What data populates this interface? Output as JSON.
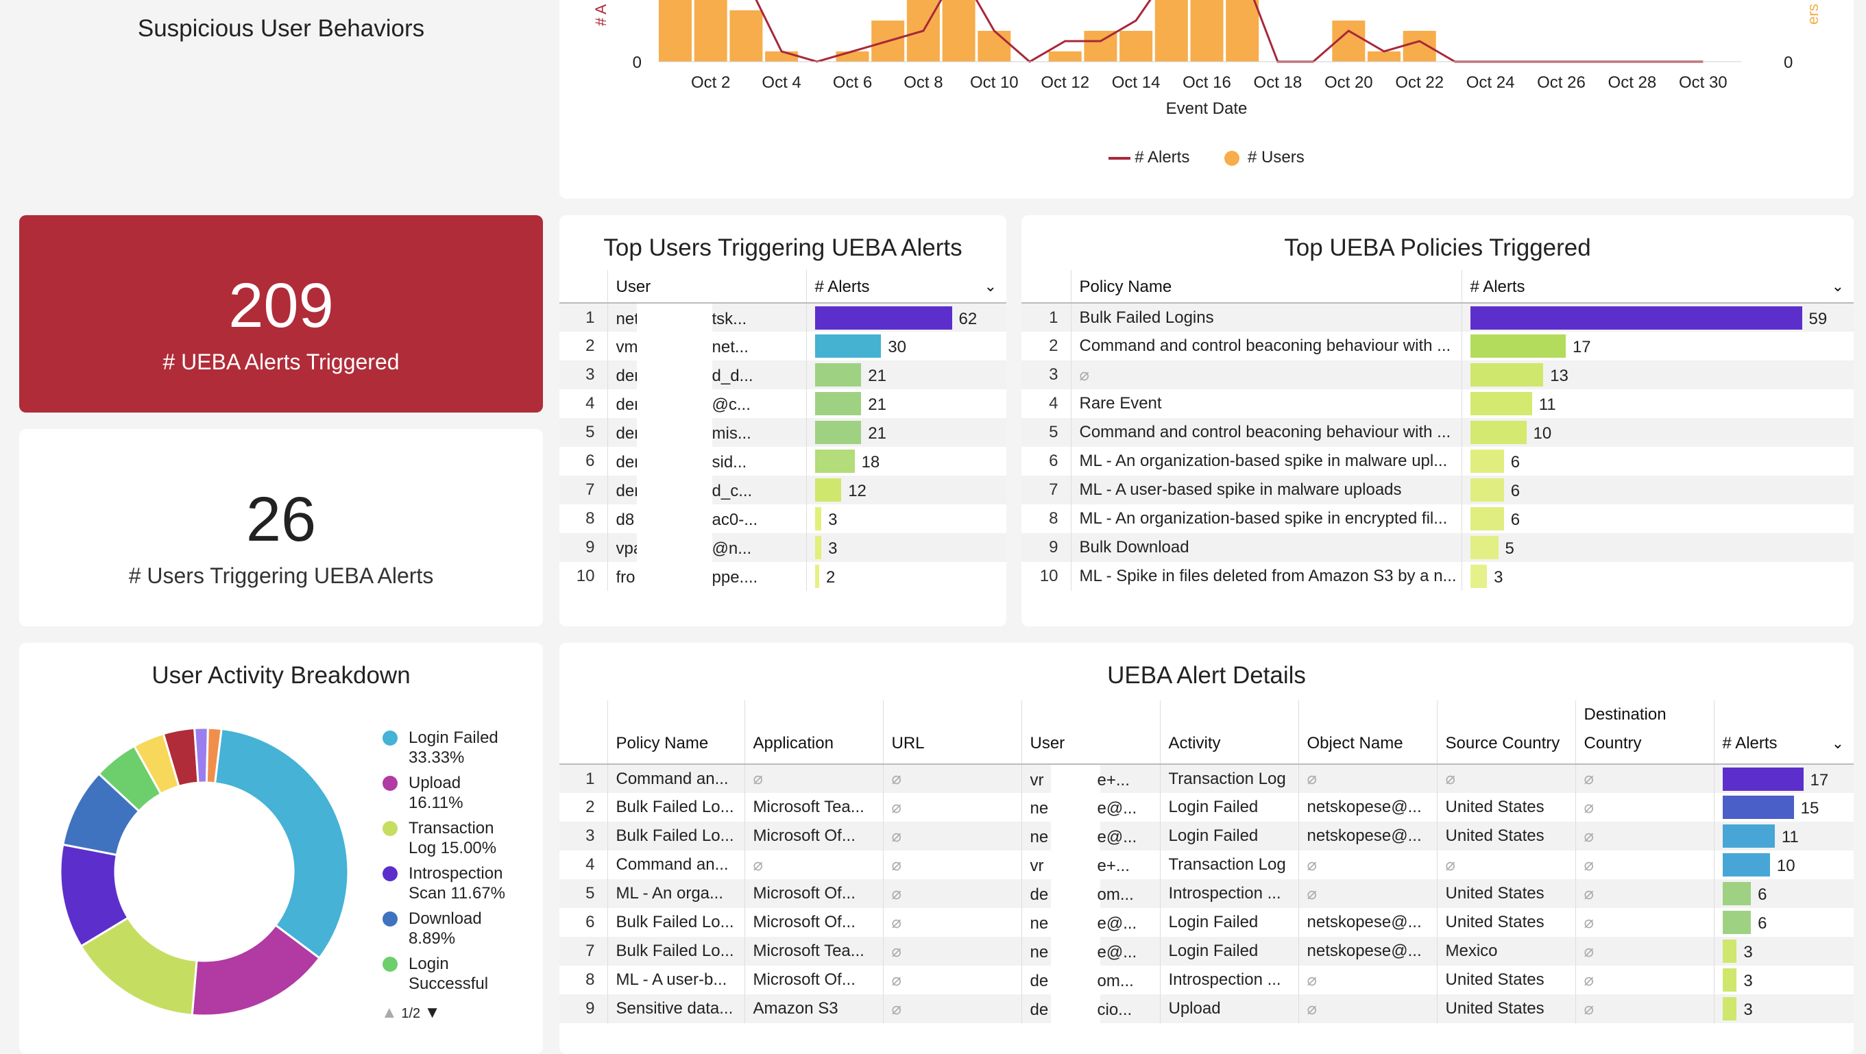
{
  "trend": {
    "title": "Suspicious User Behaviors",
    "xlabel": "Event Date",
    "ylabel_left": "# A",
    "ylabel_right": "ers",
    "zero_left": "0",
    "zero_right": "0",
    "xticks": [
      "Oct 2",
      "Oct 4",
      "Oct 6",
      "Oct 8",
      "Oct 10",
      "Oct 12",
      "Oct 14",
      "Oct 16",
      "Oct 18",
      "Oct 20",
      "Oct 22",
      "Oct 24",
      "Oct 26",
      "Oct 28",
      "Oct 30"
    ],
    "legend": [
      {
        "label": "# Alerts",
        "color": "#a8283a"
      },
      {
        "label": "# Users",
        "color": "#f7ad4b"
      }
    ]
  },
  "chart_data": {
    "type": "bar",
    "x": [
      "Oct 1",
      "Oct 2",
      "Oct 3",
      "Oct 4",
      "Oct 5",
      "Oct 6",
      "Oct 7",
      "Oct 8",
      "Oct 9",
      "Oct 10",
      "Oct 11",
      "Oct 12",
      "Oct 13",
      "Oct 14",
      "Oct 15",
      "Oct 16",
      "Oct 17",
      "Oct 18",
      "Oct 19",
      "Oct 20",
      "Oct 21",
      "Oct 22",
      "Oct 23",
      "Oct 24",
      "Oct 25",
      "Oct 26",
      "Oct 27",
      "Oct 28",
      "Oct 29",
      "Oct 30"
    ],
    "series": [
      {
        "name": "# Users",
        "type": "bar",
        "color": "#f7ad4b",
        "values": [
          6,
          6,
          5,
          1,
          0,
          1,
          4,
          6,
          6,
          3,
          0,
          1,
          3,
          3,
          6,
          6,
          6,
          0,
          0,
          4,
          1,
          3,
          0,
          0,
          0,
          0,
          0,
          0,
          0,
          0
        ]
      },
      {
        "name": "# Alerts",
        "type": "line",
        "color": "#a8283a",
        "values": [
          9,
          9,
          8,
          1,
          0,
          1,
          2,
          3,
          9,
          3,
          0,
          2,
          2,
          4,
          9,
          9,
          9,
          0,
          0,
          3,
          1,
          2,
          0,
          0,
          0,
          0,
          0,
          0,
          0,
          0
        ]
      }
    ],
    "xlabel": "Event Date",
    "ylim_visible": [
      0,
      6
    ]
  },
  "kpi1": {
    "value": "209",
    "label": "# UEBA Alerts Triggered",
    "color": "#b02c38"
  },
  "kpi2": {
    "value": "26",
    "label": "# Users Triggering UEBA Alerts"
  },
  "top_users": {
    "title": "Top Users Triggering UEBA Alerts",
    "col_user": "User",
    "col_alerts": "# Alerts",
    "rows": [
      {
        "n": "1",
        "a": "net",
        "b": "tsk...",
        "v": 62,
        "color": "#5c2fcc"
      },
      {
        "n": "2",
        "a": "vm",
        "b": "net...",
        "v": 30,
        "color": "#45b2d2"
      },
      {
        "n": "3",
        "a": "der",
        "b": "d_d...",
        "v": 21,
        "color": "#9fd183"
      },
      {
        "n": "4",
        "a": "der",
        "b": "@c...",
        "v": 21,
        "color": "#9fd183"
      },
      {
        "n": "5",
        "a": "der",
        "b": "mis...",
        "v": 21,
        "color": "#9fd183"
      },
      {
        "n": "6",
        "a": "der",
        "b": "sid...",
        "v": 18,
        "color": "#b3dc7a"
      },
      {
        "n": "7",
        "a": "der",
        "b": "d_c...",
        "v": 12,
        "color": "#cfe76c"
      },
      {
        "n": "8",
        "a": "d8",
        "b": "ac0-...",
        "v": 3,
        "color": "#e3ef7b"
      },
      {
        "n": "9",
        "a": "vpa",
        "b": "@n...",
        "v": 3,
        "color": "#e3ef7b"
      },
      {
        "n": "10",
        "a": "fro",
        "b": "ppe....",
        "v": 2,
        "color": "#e6f183"
      }
    ]
  },
  "top_policies": {
    "title": "Top UEBA Policies Triggered",
    "col_policy": "Policy Name",
    "col_alerts": "# Alerts",
    "rows": [
      {
        "n": "1",
        "p": "Bulk Failed Logins",
        "v": 59,
        "color": "#5c2fcc"
      },
      {
        "n": "2",
        "p": "Command and control beaconing behaviour with ...",
        "v": 17,
        "color": "#b3dc5c"
      },
      {
        "n": "3",
        "p": "⌀",
        "v": 13,
        "color": "#cfe76c"
      },
      {
        "n": "4",
        "p": "Rare Event",
        "v": 11,
        "color": "#d3e96f"
      },
      {
        "n": "5",
        "p": "Command and control beaconing behaviour with ...",
        "v": 10,
        "color": "#d3e96f"
      },
      {
        "n": "6",
        "p": "ML - An organization-based spike in malware upl...",
        "v": 6,
        "color": "#e0ee80"
      },
      {
        "n": "7",
        "p": "ML - A user-based spike in malware uploads",
        "v": 6,
        "color": "#e0ee80"
      },
      {
        "n": "8",
        "p": "ML - An organization-based spike in encrypted fil...",
        "v": 6,
        "color": "#e0ee80"
      },
      {
        "n": "9",
        "p": "Bulk Download",
        "v": 5,
        "color": "#e2ef84"
      },
      {
        "n": "10",
        "p": "ML - Spike in files deleted from Amazon S3 by a n...",
        "v": 3,
        "color": "#e6f18c"
      }
    ]
  },
  "breakdown": {
    "title": "User Activity Breakdown",
    "slices": [
      {
        "label": "Login Failed",
        "pct": 33.33,
        "color": "#45b2d6"
      },
      {
        "label": "Upload",
        "pct": 16.11,
        "color": "#b13aa3"
      },
      {
        "label": "Transaction Log",
        "pct": 15.0,
        "color": "#c5de62"
      },
      {
        "label": "Introspection Scan",
        "pct": 11.67,
        "color": "#5c2fcc"
      },
      {
        "label": "Download",
        "pct": 8.89,
        "color": "#3f73bf"
      },
      {
        "label": "Login Successful",
        "pct": 5.0,
        "color": "#6ccf6c"
      },
      {
        "label": "",
        "pct": 3.5,
        "color": "#f7d85a"
      },
      {
        "label": "",
        "pct": 3.5,
        "color": "#b02c38"
      },
      {
        "label": "",
        "pct": 1.5,
        "color": "#9a7ef0"
      },
      {
        "label": "",
        "pct": 1.5,
        "color": "#f08f4c"
      }
    ],
    "legend": [
      {
        "l1": "Login Failed",
        "l2": "33.33%",
        "color": "#45b2d6"
      },
      {
        "l1": "Upload",
        "l2": "16.11%",
        "color": "#b13aa3"
      },
      {
        "l1": "Transaction",
        "l2": "Log 15.00%",
        "color": "#c5de62"
      },
      {
        "l1": "Introspection",
        "l2": "Scan 11.67%",
        "color": "#5c2fcc"
      },
      {
        "l1": "Download",
        "l2": "8.89%",
        "color": "#3f73bf"
      },
      {
        "l1": "Login",
        "l2": "Successful",
        "color": "#6ccf6c"
      }
    ],
    "pager": "1/2"
  },
  "details": {
    "title": "UEBA Alert Details",
    "cols": [
      "Policy Name",
      "Application",
      "URL",
      "User",
      "Activity",
      "Object Name",
      "Source Country",
      "Destination Country",
      "# Alerts"
    ],
    "null": "⌀",
    "rows": [
      {
        "n": "1",
        "policy": "Command an...",
        "app": "⌀",
        "url": "⌀",
        "ua": "vr",
        "ub": "e+...",
        "act": "Transaction Log",
        "obj": "⌀",
        "src": "⌀",
        "dst": "⌀",
        "v": 17,
        "color": "#5c2fcc"
      },
      {
        "n": "2",
        "policy": "Bulk Failed Lo...",
        "app": "Microsoft Tea...",
        "url": "⌀",
        "ua": "ne",
        "ub": "e@...",
        "act": "Login Failed",
        "obj": "netskopese@...",
        "src": "United States",
        "dst": "⌀",
        "v": 15,
        "color": "#4a5fc8"
      },
      {
        "n": "3",
        "policy": "Bulk Failed Lo...",
        "app": "Microsoft Of...",
        "url": "⌀",
        "ua": "ne",
        "ub": "e@...",
        "act": "Login Failed",
        "obj": "netskopese@...",
        "src": "United States",
        "dst": "⌀",
        "v": 11,
        "color": "#48a6d6"
      },
      {
        "n": "4",
        "policy": "Command an...",
        "app": "⌀",
        "url": "⌀",
        "ua": "vr",
        "ub": "e+...",
        "act": "Transaction Log",
        "obj": "⌀",
        "src": "⌀",
        "dst": "⌀",
        "v": 10,
        "color": "#48a6d6"
      },
      {
        "n": "5",
        "policy": "ML - An orga...",
        "app": "Microsoft Of...",
        "url": "⌀",
        "ua": "de",
        "ub": "om...",
        "act": "Introspection ...",
        "obj": "⌀",
        "src": "United States",
        "dst": "⌀",
        "v": 6,
        "color": "#9fd183"
      },
      {
        "n": "6",
        "policy": "Bulk Failed Lo...",
        "app": "Microsoft Of...",
        "url": "⌀",
        "ua": "ne",
        "ub": "e@...",
        "act": "Login Failed",
        "obj": "netskopese@...",
        "src": "United States",
        "dst": "⌀",
        "v": 6,
        "color": "#9fd183"
      },
      {
        "n": "7",
        "policy": "Bulk Failed Lo...",
        "app": "Microsoft Tea...",
        "url": "⌀",
        "ua": "ne",
        "ub": "e@...",
        "act": "Login Failed",
        "obj": "netskopese@...",
        "src": "Mexico",
        "dst": "⌀",
        "v": 3,
        "color": "#cfe76c"
      },
      {
        "n": "8",
        "policy": "ML - A user-b...",
        "app": "Microsoft Of...",
        "url": "⌀",
        "ua": "de",
        "ub": "om...",
        "act": "Introspection ...",
        "obj": "⌀",
        "src": "United States",
        "dst": "⌀",
        "v": 3,
        "color": "#cfe76c"
      },
      {
        "n": "9",
        "policy": "Sensitive data...",
        "app": "Amazon S3",
        "url": "⌀",
        "ua": "de",
        "ub": "cio...",
        "act": "Upload",
        "obj": "⌀",
        "src": "United States",
        "dst": "⌀",
        "v": 3,
        "color": "#cfe76c"
      }
    ]
  }
}
